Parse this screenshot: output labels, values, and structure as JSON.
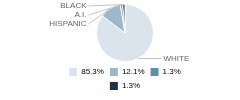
{
  "chart_data": {
    "type": "pie",
    "categories": [
      "WHITE",
      "HISPANIC",
      "A.I.",
      "BLACK"
    ],
    "values": [
      85.3,
      12.1,
      1.3,
      1.3
    ],
    "value_labels": [
      "85.3%",
      "12.1%",
      "1.3%",
      "1.3%"
    ],
    "colors": [
      "#d9e4ec",
      "#9db8c8",
      "#5f8fa8",
      "#1c3545"
    ],
    "legend": "bottom"
  }
}
